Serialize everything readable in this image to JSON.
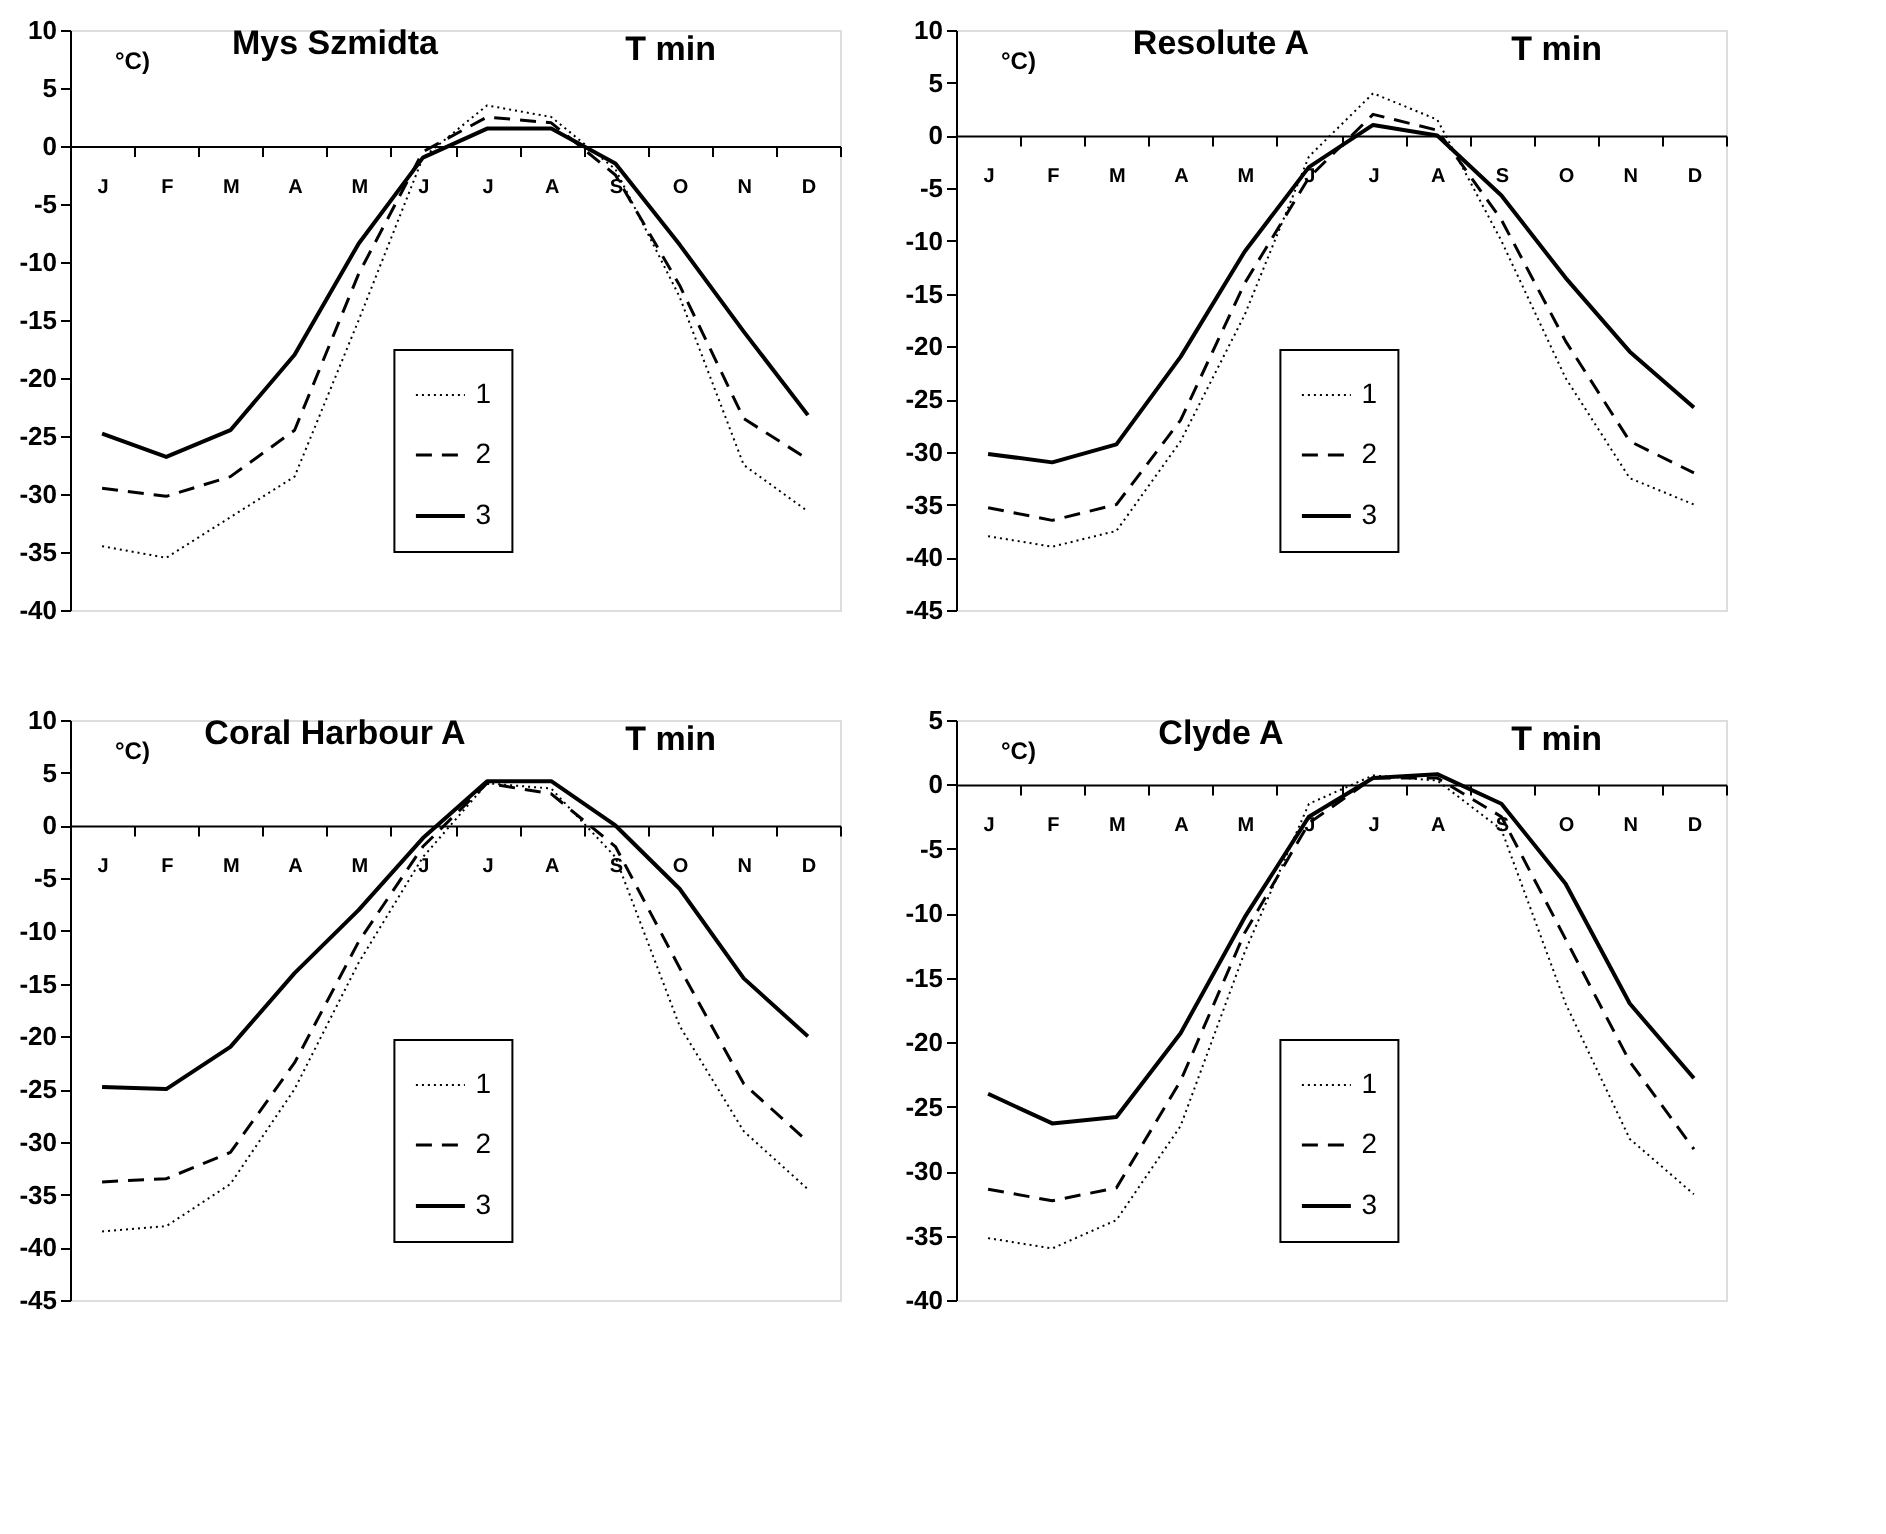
{
  "chart_data": [
    {
      "type": "line",
      "title": "Mys Szmidta",
      "ylabel": "°C)",
      "annotations": [
        "T min"
      ],
      "categories": [
        "J",
        "F",
        "M",
        "A",
        "M",
        "J",
        "J",
        "A",
        "S",
        "O",
        "N",
        "D"
      ],
      "ylim": [
        -40,
        10
      ],
      "yticks": [
        -40,
        -35,
        -30,
        -25,
        -20,
        -15,
        -10,
        -5,
        0,
        5,
        10
      ],
      "grid": false,
      "legend": "bottom",
      "marker": "none",
      "series": [
        {
          "name": "1",
          "color": "#000000",
          "line_style": "dotted",
          "values": [
            -34.5,
            -35.5,
            -32,
            -28.5,
            -15,
            -1,
            3.5,
            2.5,
            -2,
            -13,
            -27.5,
            -31.5
          ]
        },
        {
          "name": "2",
          "color": "#000000",
          "line_style": "dashed",
          "values": [
            -29.5,
            -30.2,
            -28.5,
            -24.5,
            -11,
            -0.5,
            2.5,
            2,
            -2.5,
            -12,
            -23.5,
            -27
          ]
        },
        {
          "name": "3",
          "color": "#000000",
          "line_style": "solid",
          "values": [
            -24.8,
            -26.8,
            -24.5,
            -18,
            -8.4,
            -1,
            1.5,
            1.5,
            -1.5,
            -8.5,
            -16,
            -23.2
          ]
        }
      ]
    },
    {
      "type": "line",
      "title": "Resolute A",
      "ylabel": "°C)",
      "annotations": [
        "T min"
      ],
      "categories": [
        "J",
        "F",
        "M",
        "A",
        "M",
        "J",
        "J",
        "A",
        "S",
        "O",
        "N",
        "D"
      ],
      "ylim": [
        -45,
        10
      ],
      "yticks": [
        -45,
        -40,
        -35,
        -30,
        -25,
        -20,
        -15,
        -10,
        -5,
        0,
        5,
        10
      ],
      "grid": false,
      "legend": "bottom",
      "marker": "none",
      "series": [
        {
          "name": "1",
          "color": "#000000",
          "line_style": "dotted",
          "values": [
            -38,
            -39,
            -37.5,
            -29,
            -17,
            -2,
            4,
            1.5,
            -10,
            -23,
            -32.5,
            -35
          ]
        },
        {
          "name": "2",
          "color": "#000000",
          "line_style": "dashed",
          "values": [
            -35.3,
            -36.5,
            -35,
            -27,
            -14,
            -4,
            2,
            0.5,
            -8,
            -19.5,
            -29,
            -32
          ]
        },
        {
          "name": "3",
          "color": "#000000",
          "line_style": "solid",
          "values": [
            -30.2,
            -31,
            -29.3,
            -21,
            -11,
            -3,
            1,
            0,
            -5.7,
            -13.5,
            -20.5,
            -25.8
          ]
        }
      ]
    },
    {
      "type": "line",
      "title": "Coral Harbour A",
      "ylabel": "°C)",
      "annotations": [
        "T min"
      ],
      "categories": [
        "J",
        "F",
        "M",
        "A",
        "M",
        "J",
        "J",
        "A",
        "S",
        "O",
        "N",
        "D"
      ],
      "ylim": [
        -45,
        10
      ],
      "yticks": [
        -45,
        -40,
        -35,
        -30,
        -25,
        -20,
        -15,
        -10,
        -5,
        0,
        5,
        10
      ],
      "grid": false,
      "legend": "bottom",
      "marker": "none",
      "series": [
        {
          "name": "1",
          "color": "#000000",
          "line_style": "dotted",
          "values": [
            -38.5,
            -38,
            -34,
            -25,
            -13,
            -3,
            4,
            3.5,
            -3,
            -19,
            -29,
            -34.5
          ]
        },
        {
          "name": "2",
          "color": "#000000",
          "line_style": "dashed",
          "values": [
            -33.8,
            -33.5,
            -31,
            -22.5,
            -11,
            -2,
            4,
            3,
            -2,
            -13.5,
            -24.5,
            -30
          ]
        },
        {
          "name": "3",
          "color": "#000000",
          "line_style": "solid",
          "values": [
            -24.8,
            -25,
            -21,
            -14,
            -8,
            -1.2,
            4.2,
            4.2,
            0,
            -6,
            -14.5,
            -20
          ]
        }
      ]
    },
    {
      "type": "line",
      "title": "Clyde  A",
      "ylabel": "°C)",
      "annotations": [
        "T min"
      ],
      "categories": [
        "J",
        "F",
        "M",
        "A",
        "M",
        "J",
        "J",
        "A",
        "S",
        "O",
        "N",
        "D"
      ],
      "ylim": [
        -40,
        5
      ],
      "yticks": [
        -40,
        -35,
        -30,
        -25,
        -20,
        -15,
        -10,
        -5,
        0,
        5
      ],
      "grid": false,
      "legend": "bottom",
      "marker": "none",
      "series": [
        {
          "name": "1",
          "color": "#000000",
          "line_style": "dotted",
          "values": [
            -35.2,
            -36,
            -33.8,
            -26.5,
            -13,
            -1.5,
            0.7,
            0.3,
            -3.5,
            -17,
            -27.5,
            -31.8
          ]
        },
        {
          "name": "2",
          "color": "#000000",
          "line_style": "dashed",
          "values": [
            -31.4,
            -32.3,
            -31.3,
            -23,
            -11.5,
            -3,
            0.5,
            0.5,
            -2.5,
            -12,
            -21.5,
            -28.3
          ]
        },
        {
          "name": "3",
          "color": "#000000",
          "line_style": "solid",
          "values": [
            -24,
            -26.3,
            -25.8,
            -19.3,
            -10.3,
            -2.5,
            0.5,
            0.8,
            -1.5,
            -7.7,
            -17,
            -22.8
          ]
        }
      ]
    }
  ]
}
